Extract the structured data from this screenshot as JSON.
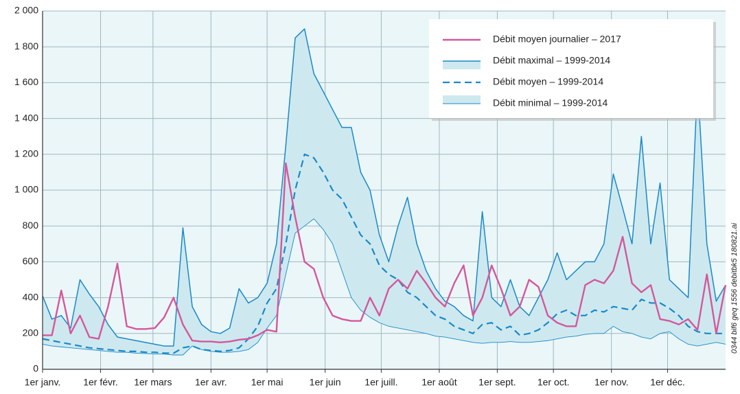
{
  "chart_data": {
    "type": "line",
    "credit": "0344 bif6 geq 1556 debitbk5 180821.ai",
    "x": [
      0,
      5,
      10,
      15,
      20,
      25,
      30,
      35,
      40,
      45,
      50,
      55,
      60,
      65,
      70,
      75,
      80,
      85,
      90,
      95,
      100,
      105,
      110,
      115,
      120,
      125,
      130,
      135,
      140,
      145,
      150,
      155,
      160,
      165,
      170,
      175,
      180,
      185,
      190,
      195,
      200,
      205,
      210,
      215,
      220,
      225,
      230,
      235,
      240,
      245,
      250,
      255,
      260,
      265,
      270,
      275,
      280,
      285,
      290,
      295,
      300,
      305,
      310,
      315,
      320,
      325,
      330,
      335,
      340,
      345,
      350,
      355,
      360,
      365
    ],
    "xlim": [
      0,
      365
    ],
    "xticks": [
      {
        "value": 0,
        "label": "1er janv."
      },
      {
        "value": 31,
        "label": "1er févr."
      },
      {
        "value": 59,
        "label": "1er mars"
      },
      {
        "value": 90,
        "label": "1er avr."
      },
      {
        "value": 120,
        "label": "1er mai"
      },
      {
        "value": 151,
        "label": "1er juin"
      },
      {
        "value": 181,
        "label": "1er juill."
      },
      {
        "value": 212,
        "label": "1er août"
      },
      {
        "value": 243,
        "label": "1er sept."
      },
      {
        "value": 273,
        "label": "1er oct."
      },
      {
        "value": 304,
        "label": "1er nov."
      },
      {
        "value": 334,
        "label": "1er déc."
      }
    ],
    "ylim": [
      0,
      2000
    ],
    "yticks": [
      0,
      200,
      400,
      600,
      800,
      {
        "value": 1000,
        "label": "1 000"
      },
      {
        "value": 1200,
        "label": "1 200"
      },
      {
        "value": 1400,
        "label": "1 400"
      },
      {
        "value": 1600,
        "label": "1 600"
      },
      {
        "value": 1800,
        "label": "1 800"
      },
      {
        "value": 2000,
        "label": "2 000"
      }
    ],
    "grid": true,
    "band_color": "#cde9ef",
    "series": [
      {
        "name": "Débit moyen journalier – 2017",
        "color": "#d4579b",
        "style": "solid",
        "values": [
          190,
          190,
          440,
          200,
          300,
          180,
          170,
          350,
          590,
          240,
          225,
          225,
          230,
          290,
          400,
          250,
          160,
          155,
          155,
          150,
          155,
          165,
          170,
          190,
          220,
          210,
          1150,
          850,
          600,
          560,
          400,
          300,
          280,
          270,
          270,
          400,
          300,
          450,
          500,
          450,
          550,
          480,
          400,
          350,
          480,
          580,
          300,
          400,
          580,
          450,
          300,
          350,
          500,
          460,
          300,
          260,
          240,
          240,
          470,
          500,
          480,
          550,
          740,
          480,
          430,
          470,
          280,
          270,
          250,
          280,
          220,
          530,
          200,
          470
        ]
      },
      {
        "name": "Débit maximal – 1999-2014",
        "color": "#1a88c8",
        "style": "solid",
        "values": [
          410,
          280,
          300,
          230,
          500,
          420,
          350,
          250,
          180,
          170,
          160,
          150,
          140,
          130,
          130,
          790,
          350,
          250,
          210,
          200,
          230,
          450,
          370,
          400,
          480,
          700,
          1250,
          1850,
          1900,
          1650,
          1550,
          1450,
          1350,
          1350,
          1100,
          1000,
          750,
          600,
          800,
          960,
          700,
          550,
          450,
          380,
          350,
          300,
          270,
          880,
          400,
          350,
          500,
          350,
          300,
          400,
          500,
          650,
          500,
          550,
          600,
          600,
          700,
          1090,
          900,
          700,
          1300,
          700,
          1040,
          500,
          450,
          400,
          1600,
          700,
          380,
          470
        ]
      },
      {
        "name": "Débit moyen – 1999-2014",
        "color": "#1a88c8",
        "style": "dashed",
        "values": [
          170,
          160,
          150,
          140,
          130,
          120,
          115,
          110,
          105,
          100,
          100,
          95,
          95,
          90,
          90,
          120,
          130,
          110,
          105,
          100,
          105,
          120,
          170,
          240,
          370,
          450,
          700,
          1000,
          1200,
          1180,
          1100,
          1000,
          950,
          850,
          750,
          700,
          580,
          530,
          500,
          430,
          400,
          350,
          300,
          280,
          240,
          220,
          200,
          250,
          260,
          220,
          240,
          190,
          200,
          220,
          260,
          310,
          330,
          300,
          300,
          330,
          320,
          350,
          340,
          330,
          390,
          370,
          370,
          340,
          300,
          240,
          210,
          200,
          200,
          200
        ]
      },
      {
        "name": "Débit minimal – 1999-2014",
        "color": "#1a88c8",
        "style": "thin",
        "values": [
          140,
          130,
          125,
          120,
          115,
          110,
          105,
          100,
          95,
          95,
          90,
          88,
          85,
          85,
          80,
          80,
          130,
          110,
          100,
          95,
          95,
          100,
          110,
          150,
          230,
          300,
          530,
          760,
          800,
          840,
          780,
          700,
          550,
          400,
          330,
          290,
          260,
          240,
          230,
          220,
          210,
          200,
          185,
          180,
          170,
          160,
          150,
          145,
          150,
          150,
          155,
          150,
          150,
          155,
          160,
          170,
          180,
          185,
          195,
          200,
          200,
          240,
          210,
          200,
          180,
          170,
          200,
          210,
          170,
          140,
          130,
          140,
          150,
          140
        ]
      }
    ]
  }
}
